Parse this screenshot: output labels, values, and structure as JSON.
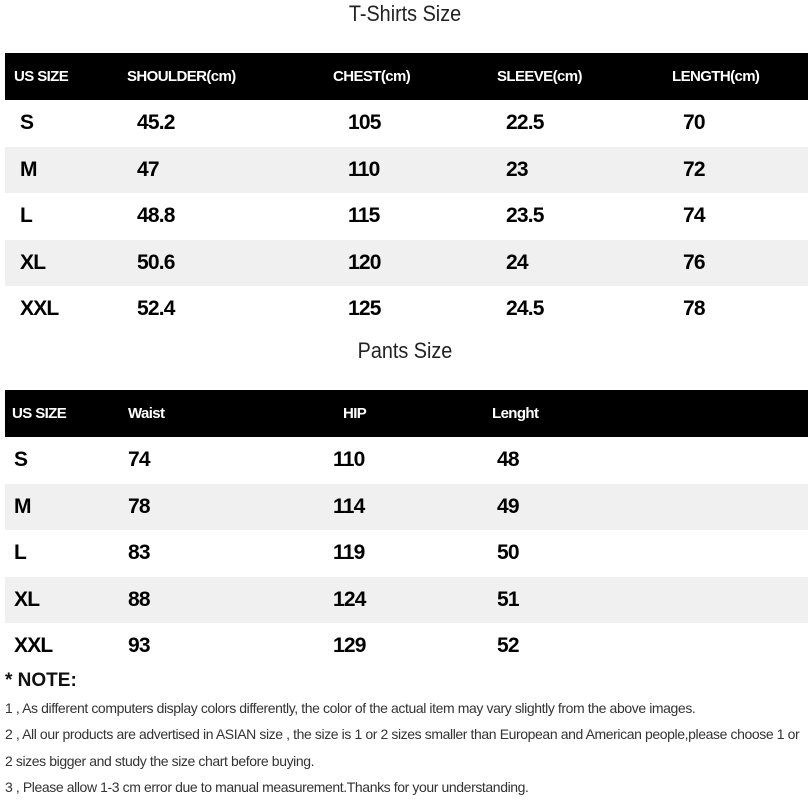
{
  "tshirt": {
    "title": "T-Shirts Size",
    "headers": [
      "US SIZE",
      "SHOULDER(cm)",
      "CHEST(cm)",
      "SLEEVE(cm)",
      "LENGTH(cm)"
    ],
    "rows": [
      [
        "S",
        "45.2",
        "105",
        "22.5",
        "70"
      ],
      [
        "M",
        "47",
        "110",
        "23",
        "72"
      ],
      [
        "L",
        "48.8",
        "115",
        "23.5",
        "74"
      ],
      [
        "XL",
        "50.6",
        "120",
        "24",
        "76"
      ],
      [
        "XXL",
        "52.4",
        "125",
        "24.5",
        "78"
      ]
    ]
  },
  "pants": {
    "title": "Pants Size",
    "headers": [
      "US SIZE",
      "Waist",
      "HIP",
      "Lenght"
    ],
    "rows": [
      [
        "S",
        "74",
        "110",
        "48"
      ],
      [
        "M",
        "78",
        "114",
        "49"
      ],
      [
        "L",
        "83",
        "119",
        "50"
      ],
      [
        "XL",
        "88",
        "124",
        "51"
      ],
      [
        "XXL",
        "93",
        "129",
        "52"
      ]
    ]
  },
  "note": {
    "title": "* NOTE:",
    "items": [
      "1 , As different computers display colors differently, the color of the actual item may vary slightly from the above images.",
      "2 , All our products are advertised in ASIAN size , the size is 1 or 2 sizes smaller than European and American people,please choose 1 or 2 sizes bigger and study the size chart before buying.",
      "3 , Please allow 1-3 cm error due to manual measurement.Thanks for your understanding."
    ]
  }
}
